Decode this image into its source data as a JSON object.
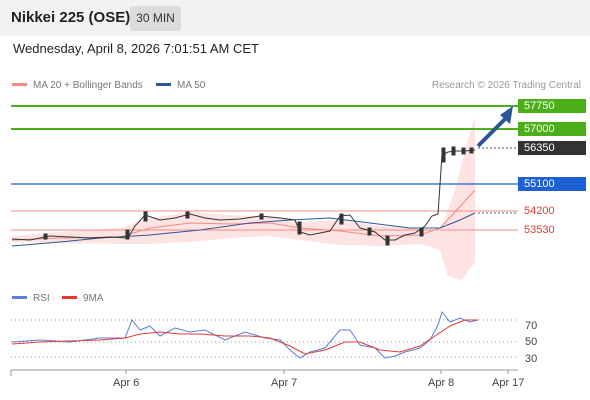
{
  "header": {
    "title": "Nikkei 225 (OSE)",
    "timeframe": "30 MIN"
  },
  "timestamp": "Wednesday, April 8, 2026 7:01:51 AM CET",
  "legend": {
    "ma20": {
      "label": "MA 20 + Bollinger Bands",
      "color": "#f28b82"
    },
    "ma50": {
      "label": "MA 50",
      "color": "#2b579a"
    },
    "credit": "Research © 2026 Trading Central"
  },
  "levels": [
    {
      "label": "57750",
      "kind": "resistance",
      "color": "#4caf1a"
    },
    {
      "label": "57000",
      "kind": "resistance",
      "color": "#4caf1a"
    },
    {
      "label": "56350",
      "kind": "current",
      "color": "#333333"
    },
    {
      "label": "55100",
      "kind": "pivot",
      "color": "#1e5fd6"
    },
    {
      "label": "54200",
      "kind": "support",
      "color": "#e53935"
    },
    {
      "label": "53530",
      "kind": "support",
      "color": "#e53935"
    }
  ],
  "indicator_legend": {
    "rsi": {
      "label": "RSI",
      "color": "#5b7fd6"
    },
    "ma9": {
      "label": "9MA",
      "color": "#e53935"
    }
  },
  "rsi_ticks": [
    "70",
    "50",
    "30"
  ],
  "x_ticks": [
    "Apr 6",
    "Apr 7",
    "Apr 8",
    "Apr 17"
  ]
}
